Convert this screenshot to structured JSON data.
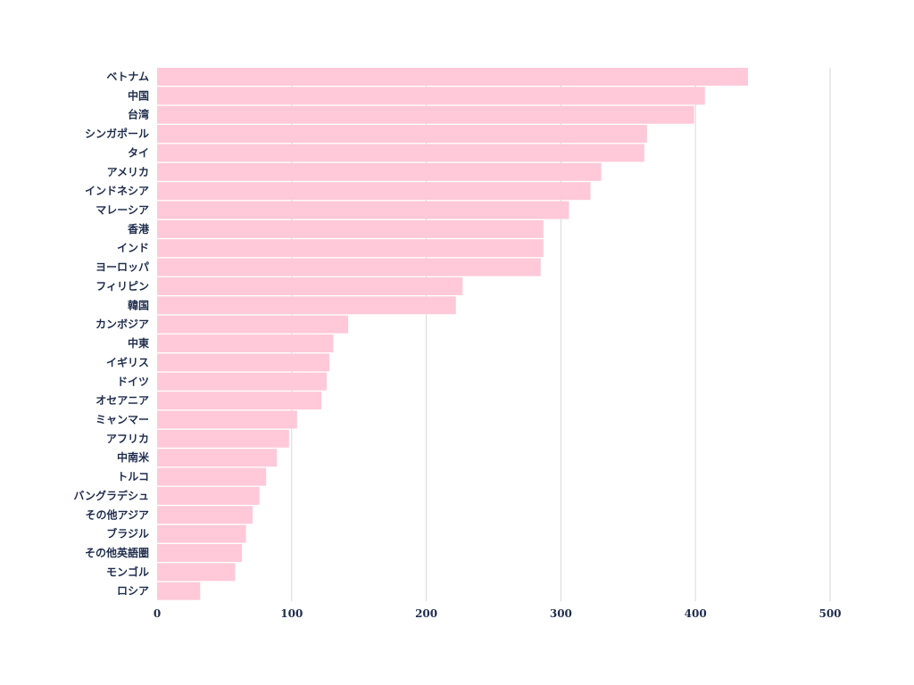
{
  "chart_data": {
    "type": "bar",
    "orientation": "horizontal",
    "categories": [
      "ベトナム",
      "中国",
      "台湾",
      "シンガポール",
      "タイ",
      "アメリカ",
      "インドネシア",
      "マレーシア",
      "香港",
      "インド",
      "ヨーロッパ",
      "フィリピン",
      "韓国",
      "カンボジア",
      "中東",
      "イギリス",
      "ドイツ",
      "オセアニア",
      "ミャンマー",
      "アフリカ",
      "中南米",
      "トルコ",
      "バングラデシュ",
      "その他アジア",
      "ブラジル",
      "その他英語圏",
      "モンゴル",
      "ロシア"
    ],
    "values": [
      439,
      407,
      399,
      364,
      362,
      330,
      322,
      306,
      287,
      287,
      285,
      227,
      222,
      142,
      131,
      128,
      126,
      122,
      104,
      98,
      89,
      81,
      76,
      71,
      66,
      63,
      58,
      32
    ],
    "title": "",
    "xlabel": "",
    "ylabel": "",
    "xlim": [
      0,
      500
    ],
    "xticks": [
      "0",
      "100",
      "200",
      "300",
      "400",
      "500"
    ],
    "grid": true,
    "colors": {
      "bar": "#ffc9d9",
      "grid": "#d9d9d9",
      "text": "#1f2d4d"
    }
  }
}
